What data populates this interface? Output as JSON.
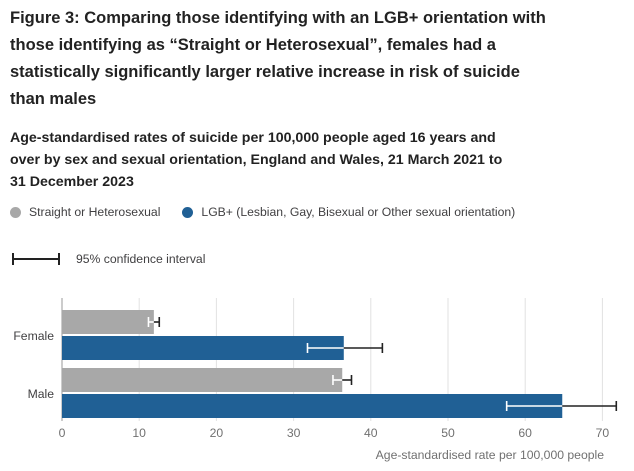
{
  "title": "Figure 3: Comparing those identifying with an LGB+ orientation with those identifying as “Straight or Heterosexual”, females had a statistically significantly larger relative increase in risk of suicide than males",
  "subtitle": "Age-standardised rates of suicide per 100,000 people aged 16 years and over by sex and sexual orientation, England and Wales, 21 March 2021 to 31 December 2023",
  "legend": {
    "items": [
      {
        "label": "Straight or Heterosexual",
        "color": "#a8a8a8"
      },
      {
        "label": "LGB+ (Lesbian, Gay, Bisexual or Other sexual orientation)",
        "color": "#206095"
      }
    ],
    "ci_label": "95% confidence interval"
  },
  "chart_data": {
    "type": "bar",
    "orientation": "horizontal",
    "categories": [
      "Female",
      "Male"
    ],
    "series": [
      {
        "name": "Straight or Heterosexual",
        "color": "#a8a8a8",
        "values": [
          11.9,
          36.3
        ],
        "ci_low": [
          11.2,
          35.1
        ],
        "ci_high": [
          12.6,
          37.5
        ]
      },
      {
        "name": "LGB+ (Lesbian, Gay, Bisexual or Other sexual orientation)",
        "color": "#206095",
        "values": [
          36.5,
          64.8
        ],
        "ci_low": [
          31.8,
          57.6
        ],
        "ci_high": [
          41.5,
          71.8
        ]
      }
    ],
    "xlabel": "Age-standardised rate per 100,000 people",
    "xlim": [
      0,
      72
    ],
    "xticks": [
      0,
      10,
      20,
      30,
      40,
      50,
      60,
      70
    ],
    "grid": true
  }
}
